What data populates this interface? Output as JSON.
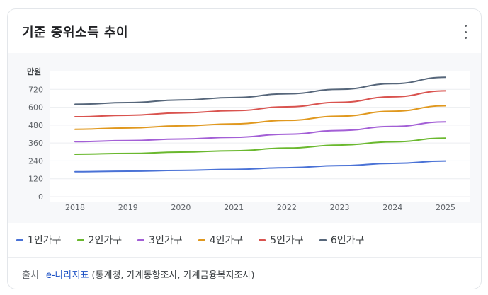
{
  "card": {
    "title": "기준 중위소득 추이",
    "more_icon": "more-vertical-icon"
  },
  "chart_data": {
    "type": "line",
    "title": "",
    "unit_label": "만원",
    "xlabel": "",
    "ylabel": "만원",
    "x": [
      "2018",
      "2019",
      "2020",
      "2021",
      "2022",
      "2023",
      "2024",
      "2025"
    ],
    "yticks": [
      "0",
      "120",
      "240",
      "360",
      "480",
      "600",
      "720"
    ],
    "ylim": [
      0,
      840
    ],
    "grid": true,
    "legend_position": "bottom",
    "series": [
      {
        "name": "1인가구",
        "color": "#4a72d6",
        "values": [
          167,
          171,
          176,
          183,
          194,
          208,
          223,
          239
        ]
      },
      {
        "name": "2인가구",
        "color": "#6ab82e",
        "values": [
          285,
          290,
          299,
          308,
          326,
          346,
          368,
          393
        ]
      },
      {
        "name": "3인가구",
        "color": "#a35fd6",
        "values": [
          369,
          376,
          387,
          398,
          419,
          444,
          471,
          502
        ]
      },
      {
        "name": "4인가구",
        "color": "#e0981e",
        "values": [
          452,
          461,
          475,
          488,
          512,
          540,
          573,
          610
        ]
      },
      {
        "name": "5인가구",
        "color": "#d9534f",
        "values": [
          536,
          546,
          562,
          577,
          603,
          633,
          670,
          710
        ]
      },
      {
        "name": "6인가구",
        "color": "#56667a",
        "values": [
          620,
          631,
          649,
          665,
          690,
          720,
          758,
          801
        ]
      }
    ]
  },
  "footer": {
    "source_label": "출처",
    "source_link": "e-나라지표",
    "source_detail": "(통계청, 가계동향조사, 가계금융복지조사)"
  }
}
